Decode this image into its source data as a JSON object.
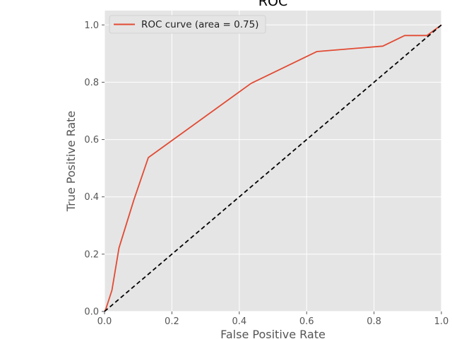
{
  "chart_data": {
    "type": "line",
    "title": "ROC",
    "xlabel": "False Positive Rate",
    "ylabel": "True Positive Rate",
    "xlim": [
      0.0,
      1.0
    ],
    "ylim": [
      0.0,
      1.05
    ],
    "xticks": [
      "0.0",
      "0.2",
      "0.4",
      "0.6",
      "0.8",
      "1.0"
    ],
    "yticks": [
      "0.0",
      "0.2",
      "0.4",
      "0.6",
      "0.8",
      "1.0"
    ],
    "grid": true,
    "legend_position": "top-left",
    "series": [
      {
        "name": "ROC curve (area = 0.75)",
        "color": "#E24A33",
        "style": "solid",
        "x": [
          0.0,
          0.004,
          0.022,
          0.043,
          0.087,
          0.13,
          0.435,
          0.63,
          0.826,
          0.891,
          0.957,
          0.978,
          1.0
        ],
        "y": [
          0.0,
          0.009,
          0.074,
          0.222,
          0.389,
          0.537,
          0.796,
          0.907,
          0.926,
          0.963,
          0.963,
          0.981,
          1.0
        ]
      },
      {
        "name": "",
        "color": "#000000",
        "style": "dashed",
        "x": [
          0.0,
          1.0
        ],
        "y": [
          0.0,
          1.0
        ]
      }
    ],
    "background_color": "#E5E5E5",
    "grid_color": "#FFFFFF"
  }
}
